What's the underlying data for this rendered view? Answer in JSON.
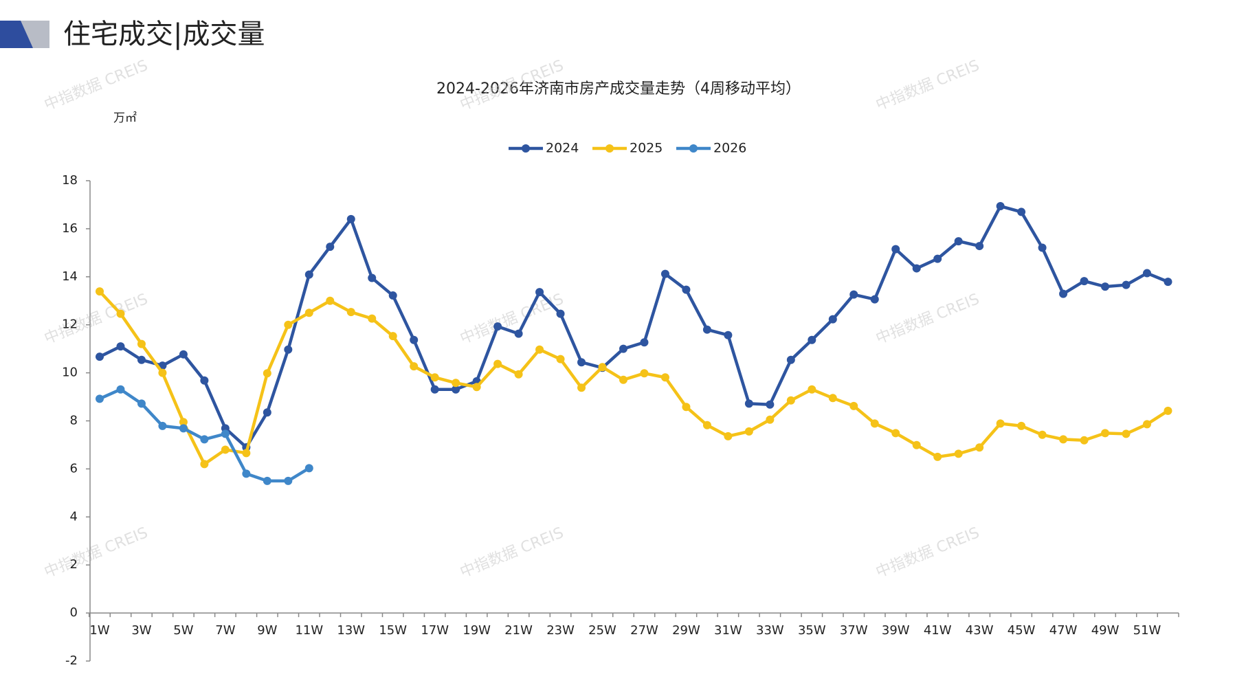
{
  "header": {
    "title": "住宅成交|成交量",
    "watermark": "中指数据 CREIS"
  },
  "chart_data": {
    "type": "line",
    "title": "2024-2026年济南市房产成交量走势（4周移动平均）",
    "y_label": "万㎡",
    "categories": [
      "1W",
      null,
      "3W",
      null,
      "5W",
      null,
      "7W",
      null,
      "9W",
      null,
      "11W",
      null,
      "13W",
      null,
      "15W",
      null,
      "17W",
      null,
      "19W",
      null,
      "21W",
      null,
      "23W",
      null,
      "25W",
      null,
      "27W",
      null,
      "29W",
      null,
      "31W",
      null,
      "33W",
      null,
      "35W",
      null,
      "37W",
      null,
      "39W",
      null,
      "41W",
      null,
      "43W",
      null,
      "45W",
      null,
      "47W",
      null,
      "49W",
      null,
      "51W",
      null
    ],
    "series": [
      {
        "name": "2024",
        "color": "#2e55a0",
        "values": [
          10.67,
          11.1,
          10.54,
          10.3,
          10.77,
          9.68,
          7.69,
          6.9,
          8.35,
          10.97,
          14.09,
          15.25,
          16.4,
          13.95,
          13.22,
          11.37,
          9.31,
          9.31,
          9.65,
          11.93,
          11.63,
          13.36,
          12.46,
          10.44,
          10.21,
          11.0,
          11.27,
          14.12,
          13.46,
          11.8,
          11.57,
          8.72,
          8.68,
          10.54,
          11.37,
          12.23,
          13.26,
          13.06,
          15.15,
          14.35,
          14.75,
          15.48,
          15.28,
          16.94,
          16.7,
          15.21,
          13.29,
          13.82,
          13.59,
          13.66,
          14.15,
          13.79
        ]
      },
      {
        "name": "2025",
        "color": "#f5c218",
        "values": [
          13.39,
          12.46,
          11.2,
          10.0,
          7.95,
          6.2,
          6.8,
          6.66,
          9.98,
          12.0,
          12.5,
          13.0,
          12.53,
          12.26,
          11.53,
          10.27,
          9.81,
          9.58,
          9.41,
          10.37,
          9.94,
          10.97,
          10.57,
          9.38,
          10.24,
          9.71,
          9.98,
          9.81,
          8.58,
          7.82,
          7.36,
          7.56,
          8.05,
          8.85,
          9.31,
          8.95,
          8.62,
          7.89,
          7.49,
          6.99,
          6.5,
          6.63,
          6.89,
          7.89,
          7.79,
          7.42,
          7.23,
          7.19,
          7.49,
          7.46,
          7.86,
          8.42
        ]
      },
      {
        "name": "2026",
        "color": "#3f87c9",
        "values": [
          8.92,
          9.31,
          8.72,
          7.79,
          7.69,
          7.23,
          7.46,
          5.8,
          5.5,
          5.5,
          6.03,
          null,
          null,
          null,
          null,
          null,
          null,
          null,
          null,
          null,
          null,
          null,
          null,
          null,
          null,
          null,
          null,
          null,
          null,
          null,
          null,
          null,
          null,
          null,
          null,
          null,
          null,
          null,
          null,
          null,
          null,
          null,
          null,
          null,
          null,
          null,
          null,
          null,
          null,
          null,
          null,
          null
        ]
      }
    ],
    "ylim": [
      -2,
      18
    ],
    "yticks": [
      -2,
      0,
      2,
      4,
      6,
      8,
      10,
      12,
      14,
      16,
      18
    ],
    "legend": "top",
    "grid": false,
    "markers": true
  }
}
